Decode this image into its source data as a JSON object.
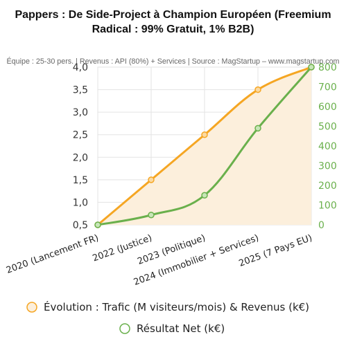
{
  "chart_data": {
    "type": "line",
    "title_line1": "Pappers : De Side-Project à Champion Européen (Freemium",
    "title_line2": "Radical : 99% Gratuit, 1% B2B)",
    "subtitle": "Équipe : 25-30 pers. | Revenus : API (80%) + Services | Source : MagStartup – www.magstartup.com",
    "categories": [
      "2020 (Lancement FR)",
      "2022 (Justice)",
      "2023 (Politique)",
      "2024 (Immobilier + Services)",
      "2025 (7 Pays EU)"
    ],
    "series": [
      {
        "name": "Évolution : Trafic (M visiteurs/mois) & Revenus (k€)",
        "axis": "left",
        "values": [
          0.5,
          1.5,
          2.5,
          3.5,
          4.0
        ],
        "color": "#f5a623",
        "fill": "#fcefdc"
      },
      {
        "name": "Résultat Net (k€)",
        "axis": "right",
        "values": [
          0,
          50,
          150,
          490,
          800
        ],
        "color": "#6ab04c"
      }
    ],
    "y_left": {
      "min": 0.5,
      "max": 4.0,
      "ticks": [
        "0,5",
        "1,0",
        "1,5",
        "2,0",
        "2,5",
        "3,0",
        "3,5",
        "4,0"
      ],
      "tick_values": [
        0.5,
        1.0,
        1.5,
        2.0,
        2.5,
        3.0,
        3.5,
        4.0
      ]
    },
    "y_right": {
      "min": 0,
      "max": 800,
      "ticks": [
        "0",
        "100",
        "200",
        "300",
        "400",
        "500",
        "600",
        "700",
        "800"
      ],
      "tick_values": [
        0,
        100,
        200,
        300,
        400,
        500,
        600,
        700,
        800
      ]
    },
    "grid": true,
    "legend_position": "bottom"
  }
}
